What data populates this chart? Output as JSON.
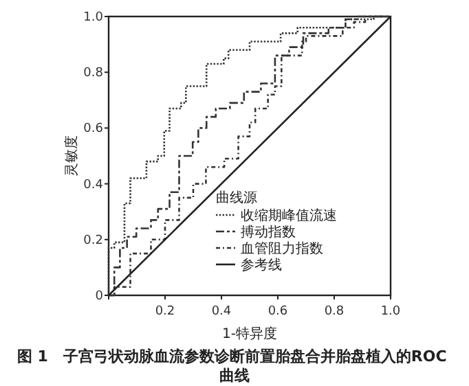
{
  "chart_data": {
    "type": "line",
    "title": "图 1　子宫弓状动脉血流参数诊断前置胎盘合并胎盘植入的ROC 曲线",
    "xlabel": "1-特异度",
    "ylabel": "灵敏度",
    "legend_title": "曲线源",
    "legend": "bottom right",
    "grid": false,
    "xlim": [
      0,
      1
    ],
    "ylim": [
      0,
      1
    ],
    "xticks": [
      {
        "value": 0,
        "label": null
      },
      0.2,
      0.4,
      0.6,
      {
        "value": 0.8,
        "label": "0.8"
      },
      {
        "value": 1,
        "label": "1.0"
      }
    ],
    "yticks": [
      0,
      0.2,
      0.4,
      0.6,
      0.8,
      {
        "value": 1,
        "label": "1.0"
      }
    ],
    "series": [
      {
        "name": "收缩期峰值流速",
        "color": "#333333",
        "line_style": "dotted",
        "x": [
          0,
          0,
          0.02,
          0.02,
          0.056,
          0.056,
          0.077,
          0.077,
          0.134,
          0.134,
          0.175,
          0.175,
          0.197,
          0.197,
          0.216,
          0.216,
          0.257,
          0.257,
          0.274,
          0.274,
          0.347,
          0.347,
          0.408,
          0.408,
          0.425,
          0.425,
          0.5,
          0.5,
          0.61,
          0.61,
          0.67,
          0.67,
          0.84,
          0.84,
          0.94,
          0.94,
          1
        ],
        "values": [
          0,
          0.17,
          0.17,
          0.19,
          0.19,
          0.33,
          0.33,
          0.42,
          0.42,
          0.48,
          0.48,
          0.5,
          0.5,
          0.59,
          0.59,
          0.67,
          0.67,
          0.69,
          0.69,
          0.75,
          0.75,
          0.83,
          0.83,
          0.85,
          0.85,
          0.88,
          0.88,
          0.91,
          0.91,
          0.94,
          0.94,
          0.96,
          0.96,
          0.99,
          0.99,
          1,
          1
        ]
      },
      {
        "name": "搏动指数",
        "color": "#333333",
        "line_style": "dashed",
        "x": [
          0,
          0.02,
          0.02,
          0.04,
          0.04,
          0.065,
          0.065,
          0.098,
          0.098,
          0.15,
          0.15,
          0.175,
          0.175,
          0.216,
          0.216,
          0.25,
          0.25,
          0.298,
          0.298,
          0.318,
          0.318,
          0.347,
          0.347,
          0.38,
          0.38,
          0.43,
          0.43,
          0.48,
          0.48,
          0.54,
          0.54,
          0.59,
          0.59,
          0.64,
          0.64,
          0.69,
          0.69,
          0.78,
          0.78,
          0.84,
          0.84,
          0.88,
          0.88,
          1
        ],
        "values": [
          0,
          0,
          0.1,
          0.1,
          0.17,
          0.17,
          0.21,
          0.21,
          0.24,
          0.24,
          0.27,
          0.27,
          0.31,
          0.31,
          0.37,
          0.37,
          0.5,
          0.5,
          0.55,
          0.55,
          0.6,
          0.6,
          0.64,
          0.64,
          0.67,
          0.67,
          0.69,
          0.69,
          0.73,
          0.73,
          0.76,
          0.76,
          0.86,
          0.86,
          0.89,
          0.89,
          0.94,
          0.94,
          0.96,
          0.96,
          0.99,
          0.99,
          1,
          1
        ]
      },
      {
        "name": "血管阻力指数",
        "color": "#333333",
        "line_style": "dashdot",
        "x": [
          0,
          0.02,
          0.02,
          0.077,
          0.077,
          0.15,
          0.15,
          0.2,
          0.2,
          0.25,
          0.25,
          0.3,
          0.3,
          0.345,
          0.345,
          0.41,
          0.41,
          0.46,
          0.46,
          0.5,
          0.5,
          0.52,
          0.52,
          0.565,
          0.565,
          0.59,
          0.59,
          0.613,
          0.613,
          0.686,
          0.686,
          0.7,
          0.7,
          0.83,
          0.83,
          0.87,
          0.87,
          0.91,
          0.91,
          1
        ],
        "values": [
          0,
          0,
          0.03,
          0.03,
          0.15,
          0.15,
          0.2,
          0.2,
          0.27,
          0.27,
          0.35,
          0.35,
          0.4,
          0.4,
          0.46,
          0.46,
          0.49,
          0.49,
          0.57,
          0.57,
          0.62,
          0.62,
          0.67,
          0.67,
          0.72,
          0.72,
          0.75,
          0.75,
          0.86,
          0.86,
          0.91,
          0.91,
          0.93,
          0.93,
          0.96,
          0.96,
          0.98,
          0.98,
          1,
          1
        ]
      },
      {
        "name": "参考线",
        "color": "#222222",
        "line_style": "solid",
        "x": [
          0,
          1
        ],
        "values": [
          0,
          1
        ]
      }
    ]
  }
}
